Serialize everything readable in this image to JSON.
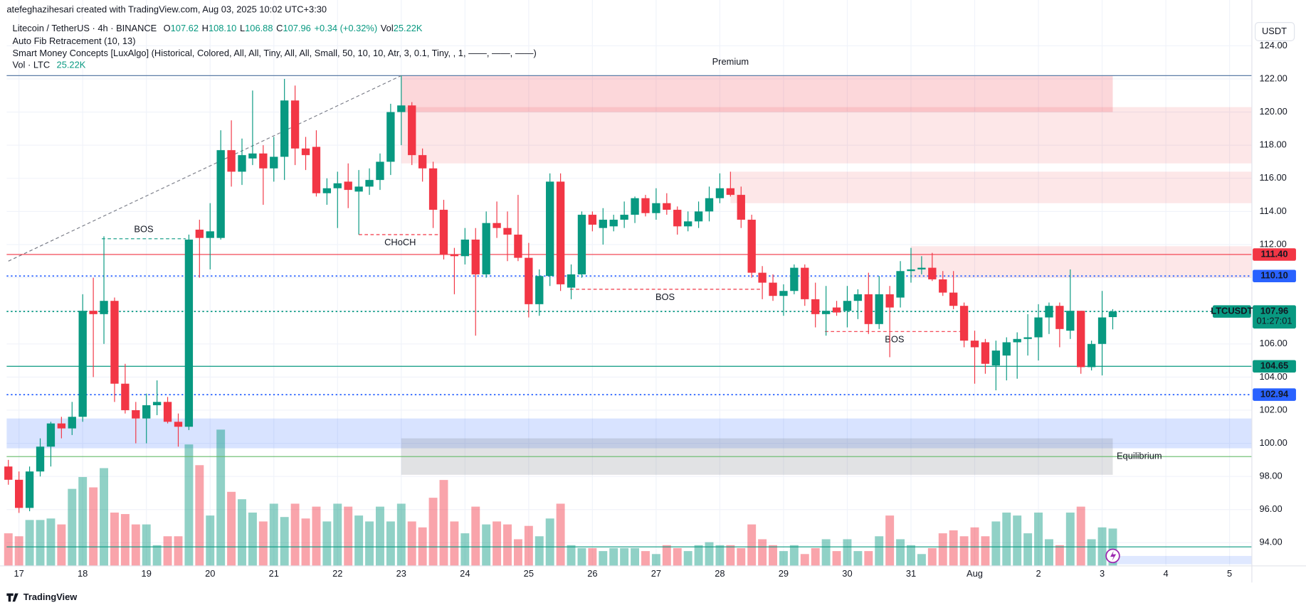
{
  "chart_data": {
    "type": "candlestick",
    "header": {
      "created": "atefeghazihesari created with TradingView.com, Aug 03, 2025 10:02 UTC+3:30",
      "symbol": "Litecoin / TetherUS · 4h · BINANCE",
      "ohlc": [
        {
          "label": "O",
          "value": "107.62"
        },
        {
          "label": "H",
          "value": "108.10"
        },
        {
          "label": "L",
          "value": "106.88"
        },
        {
          "label": "C",
          "value": "107.96"
        }
      ],
      "change": "+0.34 (+0.32%)",
      "vol_label": "Vol",
      "vol": "25.22K"
    },
    "indicators": [
      "Auto Fib Retracement (10, 13)",
      "Smart Money Concepts [LuxAlgo] (Historical, Colored, All, All, Tiny, All, All, Small, 50, 10, 10, Atr, 3, 0.1, Tiny, , 1, ——, ——, ——)"
    ],
    "vol_indicator": {
      "label": "Vol · LTC",
      "value": "25.22K"
    },
    "currency": "USDT",
    "brand": "TradingView",
    "up_color": "#089981",
    "down_color": "#f23645",
    "candle_fields": [
      "open",
      "high",
      "low",
      "close",
      "volume"
    ],
    "candles": [
      [
        98.6,
        99.0,
        97.5,
        97.8,
        22
      ],
      [
        97.8,
        98.3,
        95.8,
        96.1,
        20
      ],
      [
        96.1,
        98.6,
        95.9,
        98.3,
        31
      ],
      [
        98.3,
        100.3,
        98.0,
        99.8,
        31
      ],
      [
        99.8,
        101.3,
        98.6,
        101.2,
        32
      ],
      [
        101.2,
        101.6,
        100.3,
        100.9,
        28
      ],
      [
        100.9,
        102.5,
        100.5,
        101.6,
        52
      ],
      [
        101.6,
        109.0,
        101.3,
        108.0,
        60
      ],
      [
        108.0,
        110.0,
        104.0,
        107.8,
        53
      ],
      [
        107.8,
        112.5,
        106.0,
        108.6,
        66
      ],
      [
        108.6,
        108.8,
        102.5,
        103.6,
        36
      ],
      [
        103.6,
        104.8,
        101.8,
        102.0,
        35
      ],
      [
        102.0,
        102.5,
        100.0,
        101.5,
        28
      ],
      [
        101.5,
        103.0,
        100.0,
        102.3,
        28
      ],
      [
        102.3,
        103.8,
        101.7,
        102.5,
        14
      ],
      [
        102.5,
        102.8,
        101.2,
        101.3,
        20
      ],
      [
        101.3,
        101.8,
        99.8,
        101.0,
        20
      ],
      [
        101.0,
        112.6,
        100.8,
        112.3,
        82
      ],
      [
        112.9,
        113.5,
        110.0,
        112.4,
        68
      ],
      [
        112.4,
        114.5,
        110.5,
        112.8,
        34
      ],
      [
        112.4,
        118.9,
        112.3,
        117.7,
        92
      ],
      [
        117.7,
        119.5,
        115.5,
        116.4,
        50
      ],
      [
        116.4,
        118.4,
        115.6,
        117.4,
        45
      ],
      [
        117.2,
        121.3,
        116.8,
        117.5,
        36
      ],
      [
        117.5,
        118.0,
        114.4,
        116.6,
        30
      ],
      [
        116.6,
        118.5,
        115.8,
        117.3,
        42
      ],
      [
        117.3,
        122.0,
        115.9,
        120.7,
        33
      ],
      [
        120.7,
        121.6,
        116.8,
        117.8,
        42
      ],
      [
        117.8,
        118.5,
        116.5,
        117.4,
        32
      ],
      [
        117.9,
        118.9,
        114.9,
        115.1,
        40
      ],
      [
        115.1,
        116.0,
        114.4,
        115.4,
        30
      ],
      [
        115.4,
        116.4,
        113.0,
        115.7,
        42
      ],
      [
        115.8,
        116.9,
        114.2,
        115.3,
        40
      ],
      [
        115.2,
        116.5,
        112.6,
        115.5,
        34
      ],
      [
        115.5,
        116.6,
        115.0,
        115.9,
        30
      ],
      [
        115.9,
        117.5,
        115.3,
        117.0,
        40
      ],
      [
        117.0,
        120.5,
        116.2,
        120.0,
        30
      ],
      [
        120.0,
        122.2,
        118.0,
        120.4,
        42
      ],
      [
        120.4,
        120.6,
        116.8,
        117.4,
        30
      ],
      [
        117.4,
        117.8,
        115.8,
        116.6,
        26
      ],
      [
        116.6,
        117.0,
        113.0,
        114.1,
        46
      ],
      [
        114.1,
        114.7,
        111.1,
        111.4,
        58
      ],
      [
        111.4,
        111.8,
        109.0,
        111.3,
        30
      ],
      [
        111.3,
        113.0,
        110.8,
        112.3,
        22
      ],
      [
        112.3,
        113.0,
        106.5,
        110.2,
        40
      ],
      [
        110.2,
        114.0,
        110.0,
        113.3,
        28
      ],
      [
        113.3,
        114.6,
        112.4,
        113.0,
        30
      ],
      [
        113.0,
        114.0,
        111.0,
        112.6,
        28
      ],
      [
        112.6,
        115.0,
        111.0,
        111.2,
        18
      ],
      [
        111.2,
        112.1,
        107.6,
        108.4,
        27
      ],
      [
        108.4,
        110.5,
        107.7,
        110.1,
        20
      ],
      [
        110.1,
        116.3,
        109.5,
        115.8,
        32
      ],
      [
        115.8,
        116.3,
        109.2,
        109.6,
        42
      ],
      [
        109.4,
        110.8,
        108.7,
        110.2,
        14
      ],
      [
        110.2,
        114.0,
        110.0,
        113.8,
        12
      ],
      [
        113.8,
        114.0,
        112.8,
        113.2,
        12
      ],
      [
        113.0,
        114.2,
        112.0,
        113.5,
        10
      ],
      [
        113.1,
        113.8,
        112.8,
        113.5,
        12
      ],
      [
        113.5,
        114.6,
        113.0,
        113.8,
        12
      ],
      [
        113.8,
        114.9,
        113.3,
        114.8,
        12
      ],
      [
        114.8,
        115.0,
        113.7,
        113.9,
        10
      ],
      [
        113.9,
        115.4,
        113.5,
        114.5,
        8
      ],
      [
        114.5,
        115.1,
        113.8,
        114.1,
        14
      ],
      [
        114.1,
        114.3,
        112.6,
        113.1,
        12
      ],
      [
        113.1,
        114.0,
        112.8,
        113.4,
        10
      ],
      [
        113.4,
        114.6,
        113.0,
        114.0,
        14
      ],
      [
        114.0,
        115.5,
        113.4,
        114.8,
        16
      ],
      [
        114.8,
        116.3,
        114.5,
        115.4,
        14
      ],
      [
        115.4,
        116.4,
        114.9,
        115.0,
        14
      ],
      [
        115.0,
        115.5,
        113.0,
        113.5,
        12
      ],
      [
        113.5,
        113.8,
        110.0,
        110.3,
        28
      ],
      [
        110.3,
        110.7,
        108.7,
        109.7,
        18
      ],
      [
        109.7,
        110.2,
        108.6,
        108.9,
        14
      ],
      [
        108.9,
        109.6,
        107.7,
        109.2,
        10
      ],
      [
        109.2,
        110.8,
        109.0,
        110.6,
        14
      ],
      [
        110.6,
        110.8,
        108.3,
        108.7,
        8
      ],
      [
        108.7,
        109.7,
        107.0,
        107.8,
        12
      ],
      [
        107.8,
        109.5,
        106.5,
        108.0,
        18
      ],
      [
        108.2,
        108.6,
        107.7,
        107.9,
        10
      ],
      [
        108.0,
        109.5,
        107.0,
        108.6,
        18
      ],
      [
        108.6,
        109.3,
        107.5,
        109.0,
        10
      ],
      [
        109.0,
        110.3,
        106.6,
        107.2,
        10
      ],
      [
        107.2,
        110.1,
        106.9,
        109.0,
        20
      ],
      [
        109.0,
        109.5,
        105.2,
        108.2,
        34
      ],
      [
        108.8,
        111.0,
        108.2,
        110.4,
        18
      ],
      [
        110.4,
        111.8,
        109.7,
        110.5,
        14
      ],
      [
        110.5,
        111.3,
        110.2,
        110.6,
        8
      ],
      [
        110.6,
        111.5,
        109.8,
        109.9,
        12
      ],
      [
        109.9,
        110.4,
        108.9,
        109.1,
        22
      ],
      [
        109.1,
        110.4,
        108.1,
        108.3,
        24
      ],
      [
        108.3,
        108.5,
        105.8,
        106.2,
        20
      ],
      [
        106.2,
        106.8,
        103.6,
        105.8,
        26
      ],
      [
        106.1,
        106.3,
        104.2,
        104.8,
        20
      ],
      [
        104.7,
        106.2,
        103.2,
        105.6,
        30
      ],
      [
        105.3,
        106.4,
        103.8,
        106.1,
        36
      ],
      [
        106.1,
        106.7,
        103.9,
        106.3,
        34
      ],
      [
        106.3,
        107.8,
        105.3,
        106.4,
        22
      ],
      [
        106.4,
        108.4,
        105.0,
        107.6,
        36
      ],
      [
        107.6,
        108.5,
        106.6,
        108.3,
        18
      ],
      [
        108.3,
        108.5,
        105.8,
        106.9,
        14
      ],
      [
        106.8,
        110.5,
        106.3,
        108.0,
        36
      ],
      [
        108.0,
        108.0,
        104.2,
        104.6,
        40
      ],
      [
        104.6,
        106.2,
        104.4,
        106.0,
        18
      ],
      [
        106.0,
        109.2,
        104.1,
        107.6,
        26
      ],
      [
        107.62,
        108.1,
        106.88,
        107.96,
        25.22
      ]
    ],
    "xlim": [
      -0.16,
      117.1
    ],
    "ylim": [
      92.6,
      125.66
    ],
    "xticks": [
      {
        "value": 1,
        "label": "17"
      },
      {
        "value": 7,
        "label": "18"
      },
      {
        "value": 13,
        "label": "19"
      },
      {
        "value": 19,
        "label": "20"
      },
      {
        "value": 25,
        "label": "21"
      },
      {
        "value": 31,
        "label": "22"
      },
      {
        "value": 37,
        "label": "23"
      },
      {
        "value": 43,
        "label": "24"
      },
      {
        "value": 49,
        "label": "25"
      },
      {
        "value": 55,
        "label": "26"
      },
      {
        "value": 61,
        "label": "27"
      },
      {
        "value": 67,
        "label": "28"
      },
      {
        "value": 73,
        "label": "29"
      },
      {
        "value": 79,
        "label": "30"
      },
      {
        "value": 85,
        "label": "31"
      },
      {
        "value": 91,
        "label": "Aug"
      },
      {
        "value": 97,
        "label": "2"
      },
      {
        "value": 103,
        "label": "3"
      },
      {
        "value": 109,
        "label": "4"
      },
      {
        "value": 115,
        "label": "5"
      }
    ],
    "yticks": [
      {
        "value": 94,
        "label": "94.00"
      },
      {
        "value": 96,
        "label": "96.00"
      },
      {
        "value": 98,
        "label": "98.00"
      },
      {
        "value": 100,
        "label": "100.00"
      },
      {
        "value": 102,
        "label": "102.00"
      },
      {
        "value": 104,
        "label": "104.00"
      },
      {
        "value": 106,
        "label": "106.00"
      },
      {
        "value": 108,
        "label": "108.00"
      },
      {
        "value": 110,
        "label": "110.00"
      },
      {
        "value": 112,
        "label": "112.00"
      },
      {
        "value": 114,
        "label": "114.00"
      },
      {
        "value": 116,
        "label": "116.00"
      },
      {
        "value": 118,
        "label": "118.00"
      },
      {
        "value": 120,
        "label": "120.00"
      },
      {
        "value": 122,
        "label": "122.00"
      },
      {
        "value": 124,
        "label": "124.00"
      }
    ],
    "grid": true,
    "zones": [
      {
        "top": 122.2,
        "bottom": 120.0,
        "x0": 37,
        "x1": 104,
        "color": "rgba(242,54,69,0.2)"
      },
      {
        "top": 120.3,
        "bottom": 116.9,
        "x0": 37,
        "x1": 117.1,
        "color": "rgba(242,54,69,0.12)"
      },
      {
        "top": 116.4,
        "bottom": 114.5,
        "x0": 68,
        "x1": 117.1,
        "color": "rgba(242,54,69,0.12)"
      },
      {
        "top": 111.9,
        "bottom": 110.0,
        "x0": 85,
        "x1": 117.1,
        "color": "rgba(242,54,69,0.12)"
      },
      {
        "top": 101.5,
        "bottom": 99.7,
        "x0": -0.16,
        "x1": 117.1,
        "color": "rgba(41,98,255,0.18)"
      },
      {
        "top": 100.3,
        "bottom": 98.1,
        "x0": 37,
        "x1": 104,
        "color": "rgba(120,123,134,0.22)"
      },
      {
        "top": 93.2,
        "bottom": 92.7,
        "x0": 104,
        "x1": 117.1,
        "color": "rgba(41,98,255,0.15)"
      }
    ],
    "lines": [
      {
        "value": 122.2,
        "color": "#5d7ea8"
      },
      {
        "value": 99.2,
        "color": "#66bb6a"
      },
      {
        "value": 93.75,
        "color": "#089981"
      }
    ],
    "fib_line": {
      "x": [
        0,
        37
      ],
      "y": [
        111,
        122.2
      ]
    },
    "structures": [
      {
        "label": "BOS",
        "level": 112.35,
        "x0": 8.8,
        "x1": 16.7,
        "color": "#089981"
      },
      {
        "label": "CHoCH",
        "level": 112.6,
        "x0": 33,
        "x1": 40.8,
        "color": "#f23645"
      },
      {
        "label": "BOS",
        "level": 109.3,
        "x0": 52.9,
        "x1": 70.8,
        "color": "#f23645"
      },
      {
        "label": "BOS",
        "level": 106.75,
        "x0": 76.9,
        "x1": 90,
        "color": "#f23645"
      }
    ],
    "annotations": [
      {
        "text": "Premium",
        "x": 68,
        "y": 123,
        "color": "#f23645"
      },
      {
        "text": "Equilibrium",
        "x": 106.5,
        "y": 99.2,
        "color": "#b2b5be"
      }
    ],
    "price_tags": [
      {
        "value": 111.4,
        "label": "111.40",
        "color": "#f23645",
        "style": "solid"
      },
      {
        "value": 110.1,
        "label": "110.10",
        "color": "#2962ff",
        "style": "dotted"
      },
      {
        "value": 107.96,
        "color": "#089981",
        "style": "dotted",
        "symbol": "LTCUSDT",
        "countdown": "01:27:01"
      },
      {
        "value": 104.65,
        "color": "#089981",
        "style": "solid"
      },
      {
        "value": 102.94,
        "color": "#2962ff",
        "style": "dotted"
      }
    ]
  }
}
